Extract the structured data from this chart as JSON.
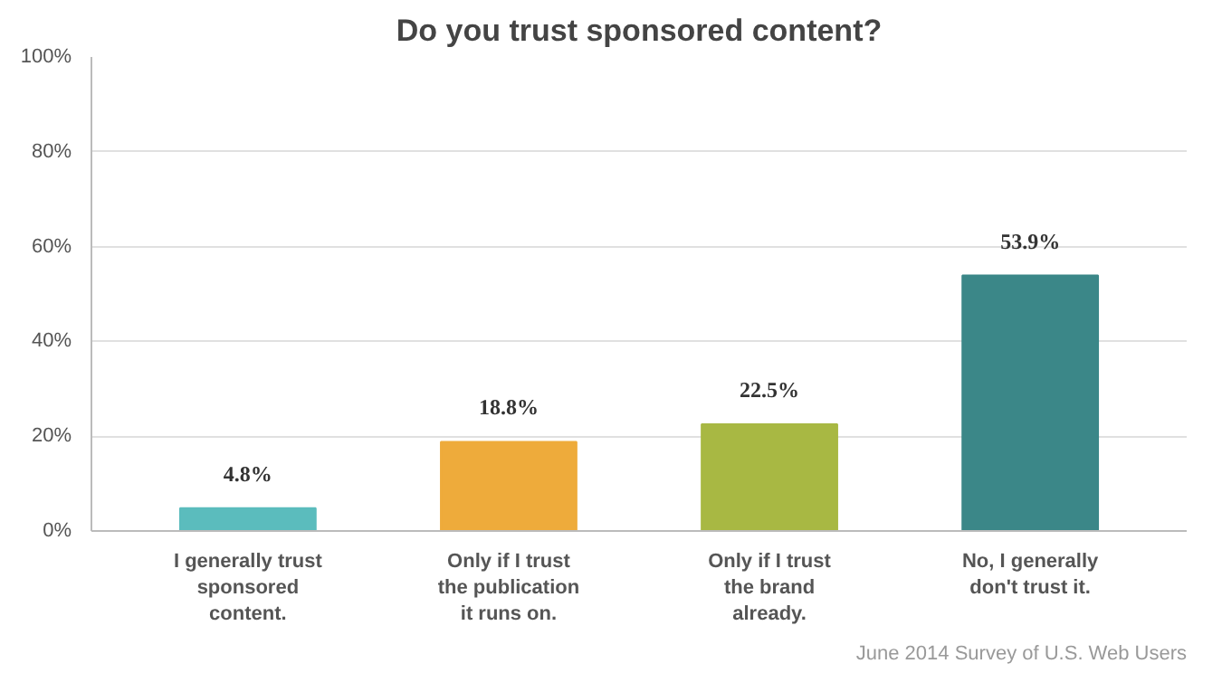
{
  "chart_data": {
    "type": "bar",
    "title": "Do you trust sponsored content?",
    "categories": [
      "I generally trust sponsored content.",
      "Only if I trust the publication it runs on.",
      "Only if I trust the brand already.",
      "No, I generally don't trust it."
    ],
    "values": [
      4.8,
      18.8,
      22.5,
      53.9
    ],
    "colors": [
      "#5bbcbd",
      "#eeab3b",
      "#a8b843",
      "#3b8788"
    ],
    "value_labels": [
      "4.8%",
      "18.8%",
      "22.5%",
      "53.9%"
    ],
    "ylim": [
      0,
      100
    ],
    "yticks": [
      {
        "value": 0,
        "label": "0%"
      },
      {
        "value": 20,
        "label": "20%"
      },
      {
        "value": 40,
        "label": "40%"
      },
      {
        "value": 60,
        "label": "60%"
      },
      {
        "value": 80,
        "label": "80%"
      },
      {
        "value": 100,
        "label": "100%"
      }
    ],
    "grid": "y",
    "annotations": [
      "June 2014 Survey of U.S. Web Users"
    ]
  }
}
